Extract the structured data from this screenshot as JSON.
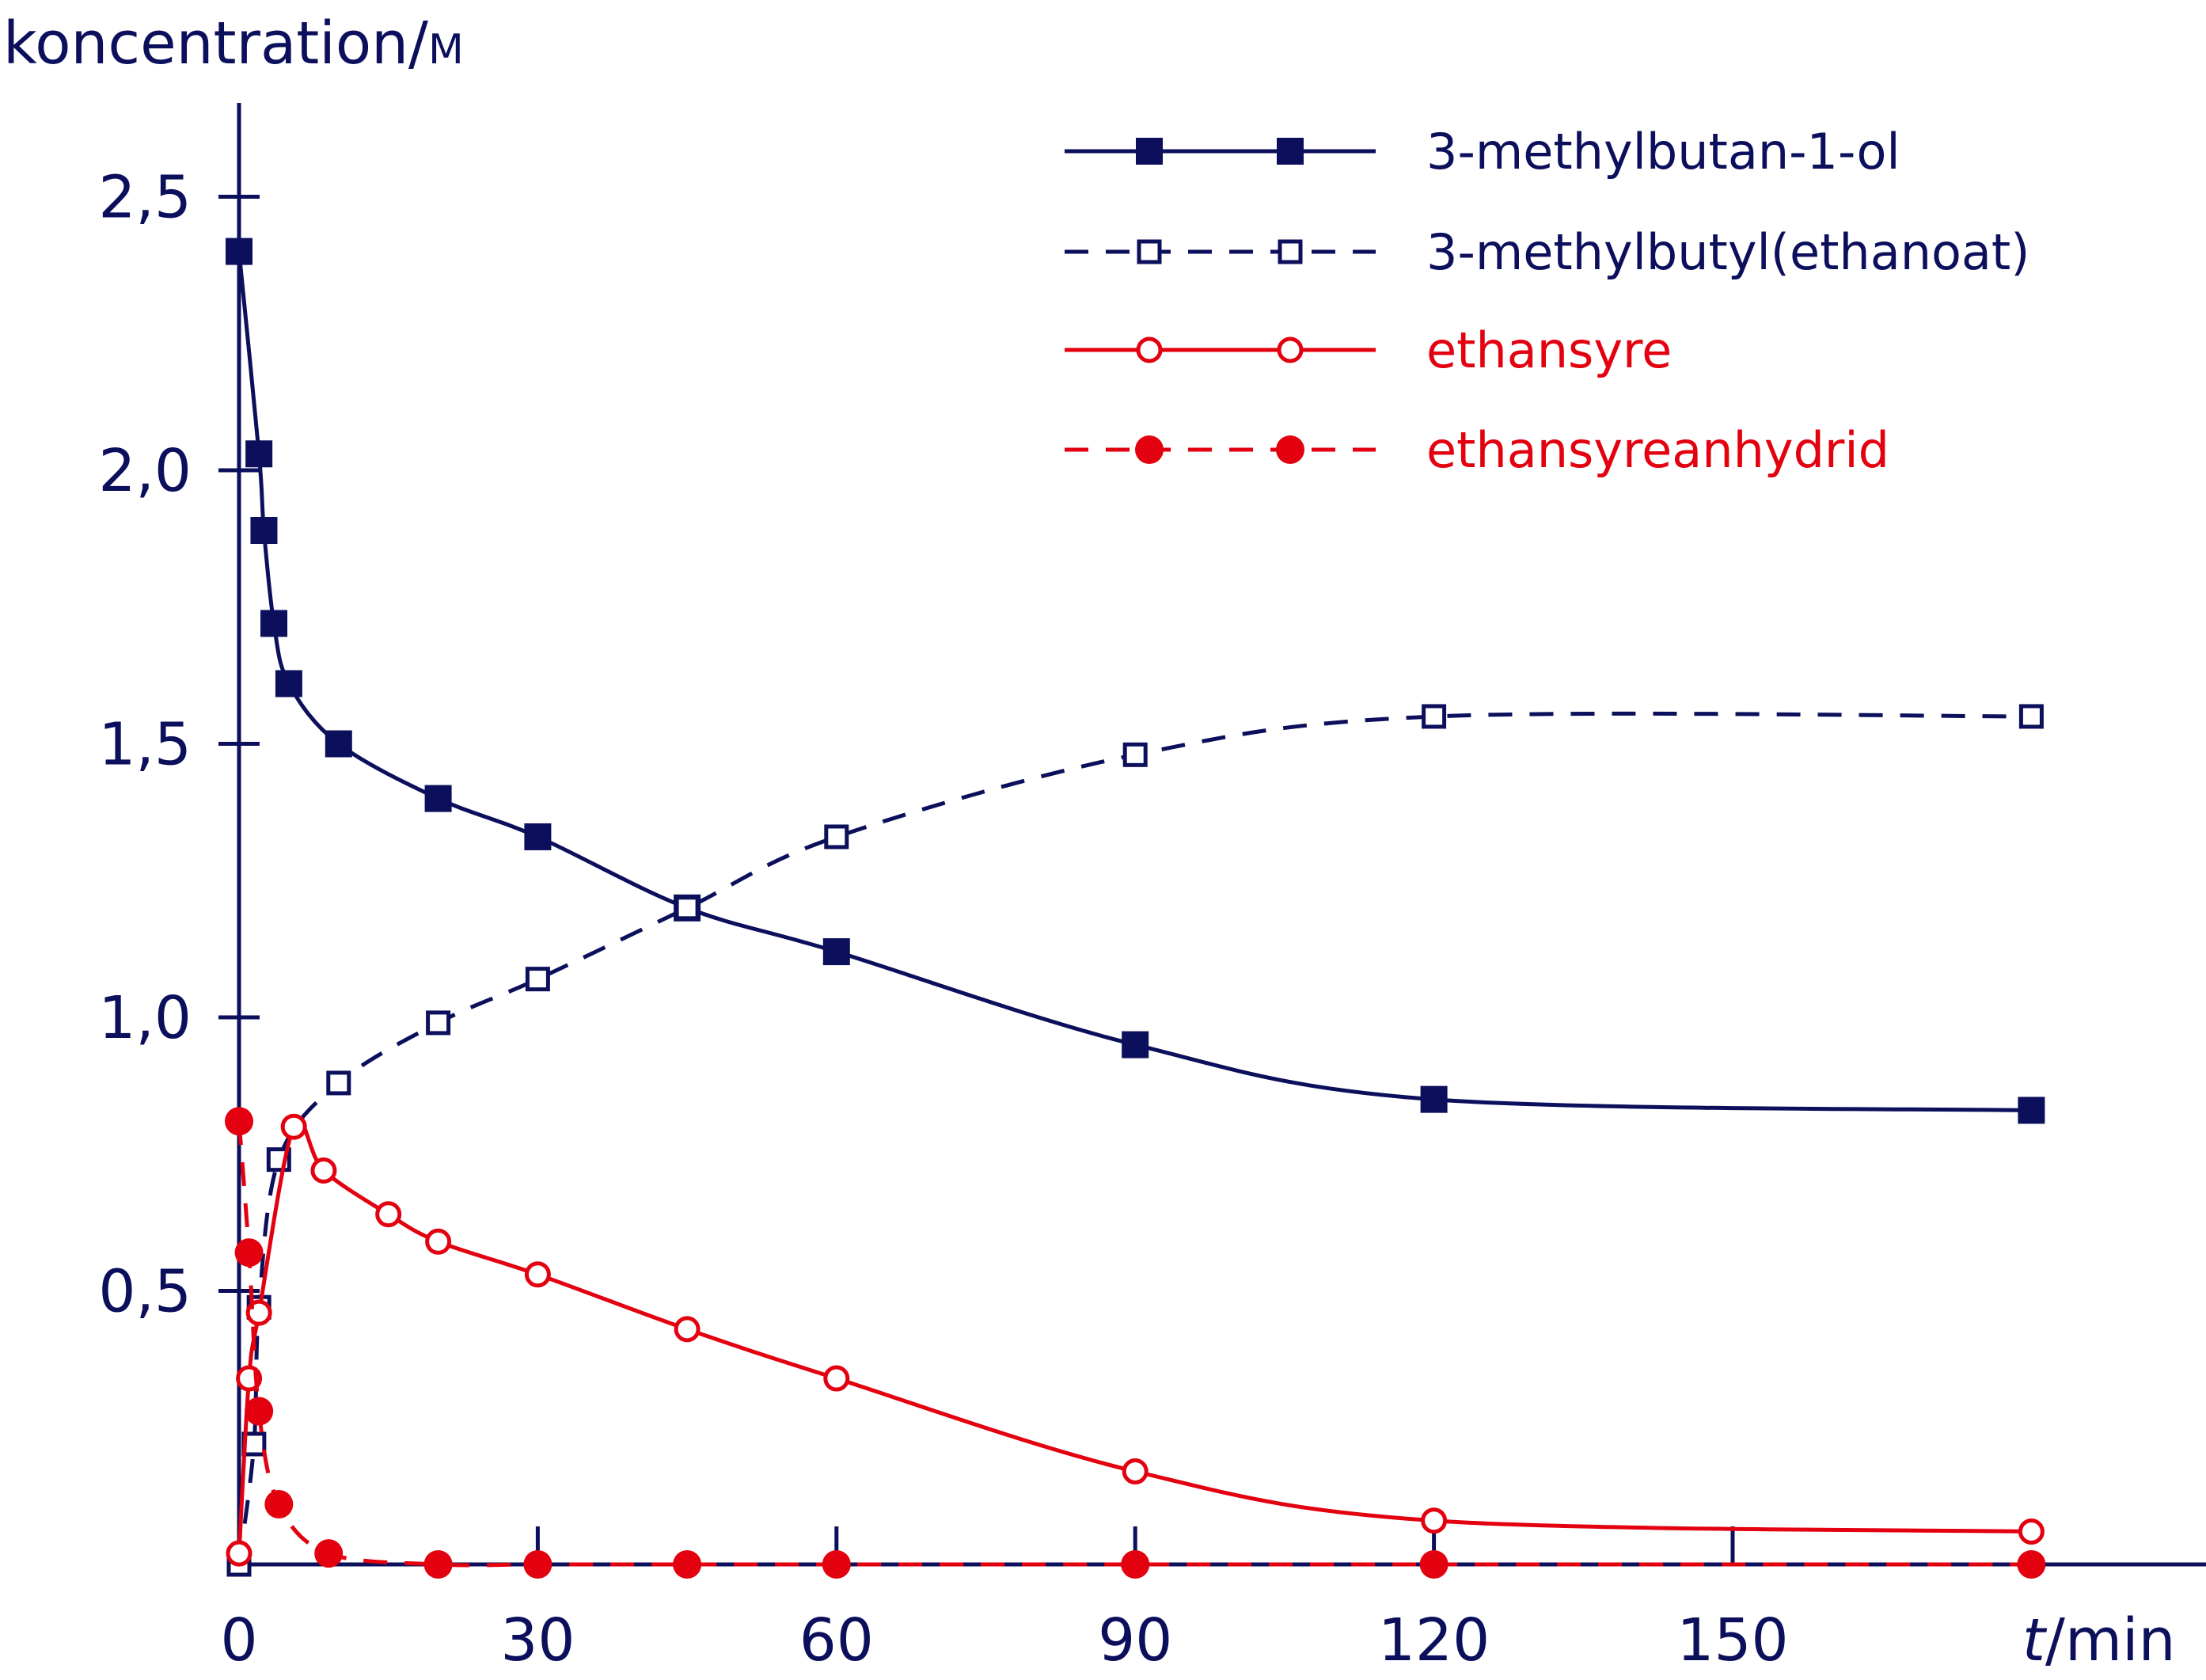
{
  "chart_data": {
    "type": "line",
    "ylabel": "koncentration/",
    "ylabel_unit": "M",
    "xlabel_var": "t",
    "xlabel_unit": "/min",
    "xlim": [
      0,
      180
    ],
    "ylim": [
      0,
      2.6
    ],
    "x_ticks": [
      0,
      30,
      60,
      90,
      120,
      150
    ],
    "x_tick_labels": [
      "0",
      "30",
      "60",
      "90",
      "120",
      "150"
    ],
    "y_ticks": [
      0.5,
      1.0,
      1.5,
      2.0,
      2.5
    ],
    "y_tick_labels": [
      "0,5",
      "1,0",
      "1,5",
      "2,0",
      "2,5"
    ],
    "grid": false,
    "legend_position": "top-right",
    "series": [
      {
        "name": "3-methylbutan-1-ol",
        "color": "#0c0f5b",
        "line": "solid",
        "marker": "filled-square",
        "x": [
          0,
          2,
          2.5,
          3.5,
          5,
          10,
          20,
          30,
          45,
          60,
          90,
          120,
          180
        ],
        "y": [
          2.4,
          2.03,
          1.89,
          1.72,
          1.61,
          1.5,
          1.4,
          1.33,
          1.2,
          1.12,
          0.95,
          0.85,
          0.83
        ]
      },
      {
        "name": "3-methylbutyl(ethanoat)",
        "color": "#0c0f5b",
        "line": "dashed",
        "marker": "open-square",
        "x": [
          0,
          1.5,
          2,
          4,
          10,
          20,
          30,
          45,
          60,
          90,
          120,
          180
        ],
        "y": [
          0,
          0.22,
          0.47,
          0.74,
          0.88,
          0.99,
          1.07,
          1.2,
          1.33,
          1.48,
          1.55,
          1.55
        ]
      },
      {
        "name": "ethansyre",
        "color": "#e3000f",
        "line": "solid",
        "marker": "open-circle",
        "x": [
          0,
          1,
          2,
          5.5,
          8.5,
          15,
          20,
          30,
          45,
          60,
          90,
          120,
          180
        ],
        "y": [
          0.02,
          0.34,
          0.46,
          0.8,
          0.72,
          0.64,
          0.59,
          0.53,
          0.43,
          0.34,
          0.17,
          0.08,
          0.06
        ]
      },
      {
        "name": "ethansyreanhydrid",
        "color": "#e3000f",
        "line": "dashed",
        "marker": "filled-circle",
        "x": [
          0,
          1,
          2,
          4,
          9,
          20,
          30,
          45,
          60,
          90,
          120,
          180
        ],
        "y": [
          0.81,
          0.57,
          0.28,
          0.11,
          0.02,
          0,
          0,
          0,
          0,
          0,
          0,
          0
        ]
      }
    ]
  }
}
